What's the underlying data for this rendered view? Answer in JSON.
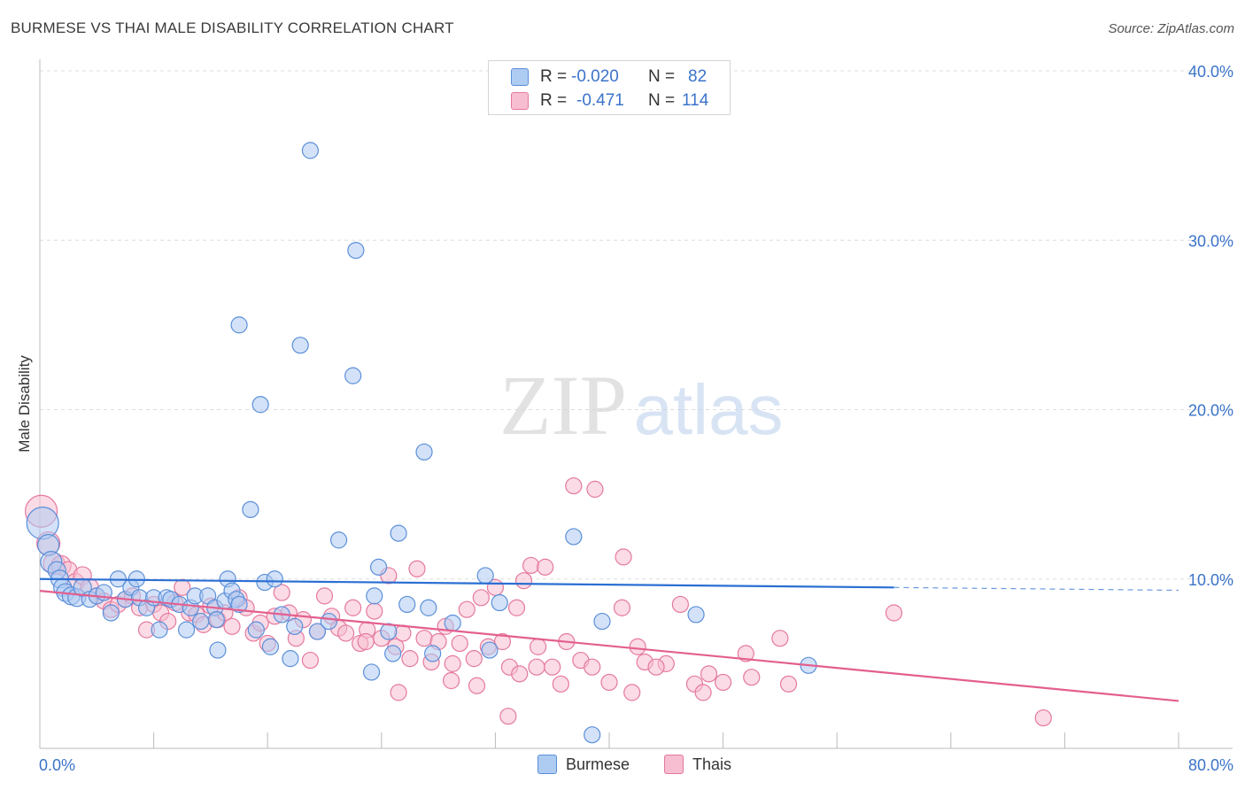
{
  "title": "BURMESE VS THAI MALE DISABILITY CORRELATION CHART",
  "source": "Source: ZipAtlas.com",
  "watermark": {
    "zip": "ZIP",
    "atlas": "atlas"
  },
  "colors": {
    "burmese_fill": "#aecbf2",
    "burmese_stroke": "#5b8fd9",
    "burmese_line": "#2b6fd3",
    "thai_fill": "#f7bdd0",
    "thai_stroke": "#e5799e",
    "thai_line": "#e35f8f",
    "axis_text": "#3b73c9",
    "grid": "#dddddd"
  },
  "legend_top": {
    "rows": [
      {
        "series": "Burmese",
        "r_label": "R =",
        "r_value": "-0.020",
        "n_label": "N =",
        "n_value": "82"
      },
      {
        "series": "Thais",
        "r_label": "R =",
        "r_value": "-0.471",
        "n_label": "N =",
        "n_value": "114"
      }
    ]
  },
  "legend_bottom": [
    "Burmese",
    "Thais"
  ],
  "chart_data": {
    "type": "scatter",
    "title": "BURMESE VS THAI MALE DISABILITY CORRELATION CHART",
    "xlabel": "",
    "ylabel": "Male Disability",
    "xlim": [
      0,
      80
    ],
    "ylim": [
      0,
      40
    ],
    "x_tick_labels": [
      "0.0%",
      "80.0%"
    ],
    "y_ticks": [
      10,
      20,
      30,
      40
    ],
    "y_tick_labels": [
      "10.0%",
      "20.0%",
      "30.0%",
      "40.0%"
    ],
    "grid": true,
    "legend_position": "top-center",
    "series": [
      {
        "name": "Burmese",
        "r": -0.02,
        "n": 82,
        "trend": {
          "x": [
            0,
            60
          ],
          "y": [
            10.0,
            9.5
          ],
          "dashed_extension_to_x": 80
        },
        "points": [
          [
            0.2,
            13.3,
            18
          ],
          [
            0.6,
            12.0,
            12
          ],
          [
            0.8,
            11.0,
            12
          ],
          [
            1.2,
            10.5,
            10
          ],
          [
            1.4,
            10.0,
            10
          ],
          [
            1.6,
            9.5,
            10
          ],
          [
            1.8,
            9.2,
            10
          ],
          [
            2.2,
            9.0,
            10
          ],
          [
            2.6,
            8.9,
            10
          ],
          [
            3.0,
            9.5,
            10
          ],
          [
            3.5,
            8.8,
            9
          ],
          [
            4.0,
            9.0,
            9
          ],
          [
            4.5,
            9.2,
            9
          ],
          [
            5.0,
            8.0,
            9
          ],
          [
            5.5,
            10.0,
            9
          ],
          [
            6.0,
            8.8,
            9
          ],
          [
            6.4,
            9.5,
            9
          ],
          [
            6.8,
            10.0,
            9
          ],
          [
            7.0,
            8.9,
            9
          ],
          [
            7.5,
            8.3,
            9
          ],
          [
            8.0,
            8.9,
            9
          ],
          [
            8.4,
            7.0,
            9
          ],
          [
            8.9,
            8.9,
            9
          ],
          [
            9.2,
            8.8,
            9
          ],
          [
            9.8,
            8.5,
            9
          ],
          [
            10.3,
            7.0,
            9
          ],
          [
            10.6,
            8.3,
            9
          ],
          [
            10.9,
            9.0,
            9
          ],
          [
            11.3,
            7.5,
            9
          ],
          [
            11.8,
            9.0,
            9
          ],
          [
            12.3,
            8.3,
            9
          ],
          [
            12.4,
            7.6,
            9
          ],
          [
            12.5,
            5.8,
            9
          ],
          [
            13.0,
            8.7,
            9
          ],
          [
            13.2,
            10.0,
            9
          ],
          [
            13.5,
            9.3,
            9
          ],
          [
            13.8,
            8.8,
            9
          ],
          [
            14.0,
            8.5,
            9
          ],
          [
            14.0,
            25.0,
            9
          ],
          [
            14.8,
            14.1,
            9
          ],
          [
            15.2,
            7.0,
            9
          ],
          [
            15.5,
            20.3,
            9
          ],
          [
            15.8,
            9.8,
            9
          ],
          [
            16.2,
            6.0,
            9
          ],
          [
            16.5,
            10.0,
            9
          ],
          [
            17.0,
            7.9,
            9
          ],
          [
            17.6,
            5.3,
            9
          ],
          [
            17.9,
            7.2,
            9
          ],
          [
            18.3,
            23.8,
            9
          ],
          [
            19.0,
            35.3,
            9
          ],
          [
            19.5,
            6.9,
            9
          ],
          [
            20.3,
            7.5,
            9
          ],
          [
            21.0,
            12.3,
            9
          ],
          [
            22.0,
            22.0,
            9
          ],
          [
            22.2,
            29.4,
            9
          ],
          [
            23.3,
            4.5,
            9
          ],
          [
            23.5,
            9.0,
            9
          ],
          [
            23.8,
            10.7,
            9
          ],
          [
            24.5,
            6.9,
            9
          ],
          [
            24.8,
            5.6,
            9
          ],
          [
            25.2,
            12.7,
            9
          ],
          [
            25.8,
            8.5,
            9
          ],
          [
            27.0,
            17.5,
            9
          ],
          [
            27.3,
            8.3,
            9
          ],
          [
            27.6,
            5.6,
            9
          ],
          [
            29.0,
            7.4,
            9
          ],
          [
            31.3,
            10.2,
            9
          ],
          [
            31.6,
            5.8,
            9
          ],
          [
            32.3,
            8.6,
            9
          ],
          [
            37.5,
            12.5,
            9
          ],
          [
            38.8,
            0.8,
            9
          ],
          [
            39.5,
            7.5,
            9
          ],
          [
            46.1,
            7.9,
            9
          ],
          [
            54.0,
            4.9,
            9
          ]
        ]
      },
      {
        "name": "Thais",
        "r": -0.471,
        "n": 114,
        "trend": {
          "x": [
            0,
            80
          ],
          "y": [
            9.3,
            2.8
          ]
        },
        "points": [
          [
            0.1,
            14.0,
            18
          ],
          [
            0.6,
            12.1,
            13
          ],
          [
            1.0,
            10.9,
            12
          ],
          [
            1.5,
            10.8,
            11
          ],
          [
            2.0,
            10.5,
            10
          ],
          [
            2.5,
            9.8,
            10
          ],
          [
            3.0,
            10.2,
            10
          ],
          [
            3.5,
            9.5,
            10
          ],
          [
            4.0,
            9.0,
            9
          ],
          [
            4.5,
            8.7,
            9
          ],
          [
            5.0,
            8.2,
            9
          ],
          [
            5.5,
            8.5,
            9
          ],
          [
            6.0,
            8.8,
            9
          ],
          [
            6.5,
            9.0,
            9
          ],
          [
            7.0,
            8.3,
            9
          ],
          [
            7.5,
            7.0,
            9
          ],
          [
            8.0,
            8.5,
            9
          ],
          [
            8.5,
            8.0,
            9
          ],
          [
            9.0,
            7.5,
            9
          ],
          [
            9.5,
            8.6,
            9
          ],
          [
            10.0,
            9.5,
            9
          ],
          [
            10.5,
            8.0,
            9
          ],
          [
            11.0,
            7.9,
            9
          ],
          [
            11.5,
            7.3,
            9
          ],
          [
            12.0,
            8.4,
            9
          ],
          [
            12.5,
            7.6,
            9
          ],
          [
            13.0,
            8.0,
            9
          ],
          [
            13.5,
            7.2,
            9
          ],
          [
            14.0,
            8.9,
            9
          ],
          [
            14.5,
            8.3,
            9
          ],
          [
            15.0,
            6.8,
            9
          ],
          [
            15.5,
            7.4,
            9
          ],
          [
            16.0,
            6.2,
            9
          ],
          [
            16.5,
            7.8,
            9
          ],
          [
            17.0,
            9.2,
            9
          ],
          [
            17.5,
            8.0,
            9
          ],
          [
            18.0,
            6.5,
            9
          ],
          [
            18.5,
            7.6,
            9
          ],
          [
            19.0,
            5.2,
            9
          ],
          [
            19.5,
            6.9,
            9
          ],
          [
            20.0,
            9.0,
            9
          ],
          [
            20.5,
            7.8,
            9
          ],
          [
            21.0,
            7.1,
            9
          ],
          [
            21.5,
            6.8,
            9
          ],
          [
            22.0,
            8.3,
            9
          ],
          [
            22.5,
            6.2,
            9
          ],
          [
            23.0,
            7.0,
            9
          ],
          [
            23.5,
            8.1,
            9
          ],
          [
            24.0,
            6.5,
            9
          ],
          [
            24.5,
            10.2,
            9
          ],
          [
            25.0,
            6.0,
            9
          ],
          [
            25.5,
            6.8,
            9
          ],
          [
            26.0,
            5.3,
            9
          ],
          [
            26.5,
            10.6,
            9
          ],
          [
            27.0,
            6.5,
            9
          ],
          [
            27.5,
            5.1,
            9
          ],
          [
            28.0,
            6.3,
            9
          ],
          [
            28.5,
            7.2,
            9
          ],
          [
            29.0,
            5.0,
            9
          ],
          [
            29.5,
            6.2,
            9
          ],
          [
            30.0,
            8.2,
            9
          ],
          [
            30.5,
            5.3,
            9
          ],
          [
            31.0,
            8.9,
            9
          ],
          [
            31.5,
            6.0,
            9
          ],
          [
            32.0,
            9.5,
            9
          ],
          [
            32.5,
            6.3,
            9
          ],
          [
            33.0,
            4.8,
            9
          ],
          [
            33.5,
            8.3,
            9
          ],
          [
            34.0,
            9.9,
            9
          ],
          [
            34.5,
            10.8,
            9
          ],
          [
            35.0,
            6.0,
            9
          ],
          [
            35.5,
            10.7,
            9
          ],
          [
            36.0,
            4.8,
            9
          ],
          [
            37.0,
            6.3,
            9
          ],
          [
            37.5,
            15.5,
            9
          ],
          [
            38.0,
            5.2,
            9
          ],
          [
            39.0,
            15.3,
            9
          ],
          [
            40.0,
            3.9,
            9
          ],
          [
            41.0,
            11.3,
            9
          ],
          [
            42.0,
            6.0,
            9
          ],
          [
            44.0,
            5.0,
            9
          ],
          [
            45.0,
            8.5,
            9
          ],
          [
            46.0,
            3.8,
            9
          ],
          [
            47.0,
            4.4,
            9
          ],
          [
            48.0,
            3.9,
            9
          ],
          [
            50.0,
            4.2,
            9
          ],
          [
            52.0,
            6.5,
            9
          ],
          [
            41.6,
            3.3,
            9
          ],
          [
            40.9,
            8.3,
            9
          ],
          [
            49.6,
            5.6,
            9
          ],
          [
            42.5,
            5.1,
            9
          ],
          [
            43.3,
            4.8,
            9
          ],
          [
            46.6,
            3.3,
            9
          ],
          [
            52.6,
            3.8,
            9
          ],
          [
            60.0,
            8.0,
            9
          ],
          [
            70.5,
            1.8,
            9
          ],
          [
            32.9,
            1.9,
            9
          ],
          [
            25.2,
            3.3,
            9
          ],
          [
            38.8,
            4.8,
            9
          ],
          [
            36.6,
            3.8,
            9
          ],
          [
            30.7,
            3.7,
            9
          ],
          [
            28.9,
            4.0,
            9
          ],
          [
            34.9,
            4.8,
            9
          ],
          [
            33.7,
            4.4,
            9
          ],
          [
            22.9,
            6.3,
            9
          ]
        ]
      }
    ]
  }
}
